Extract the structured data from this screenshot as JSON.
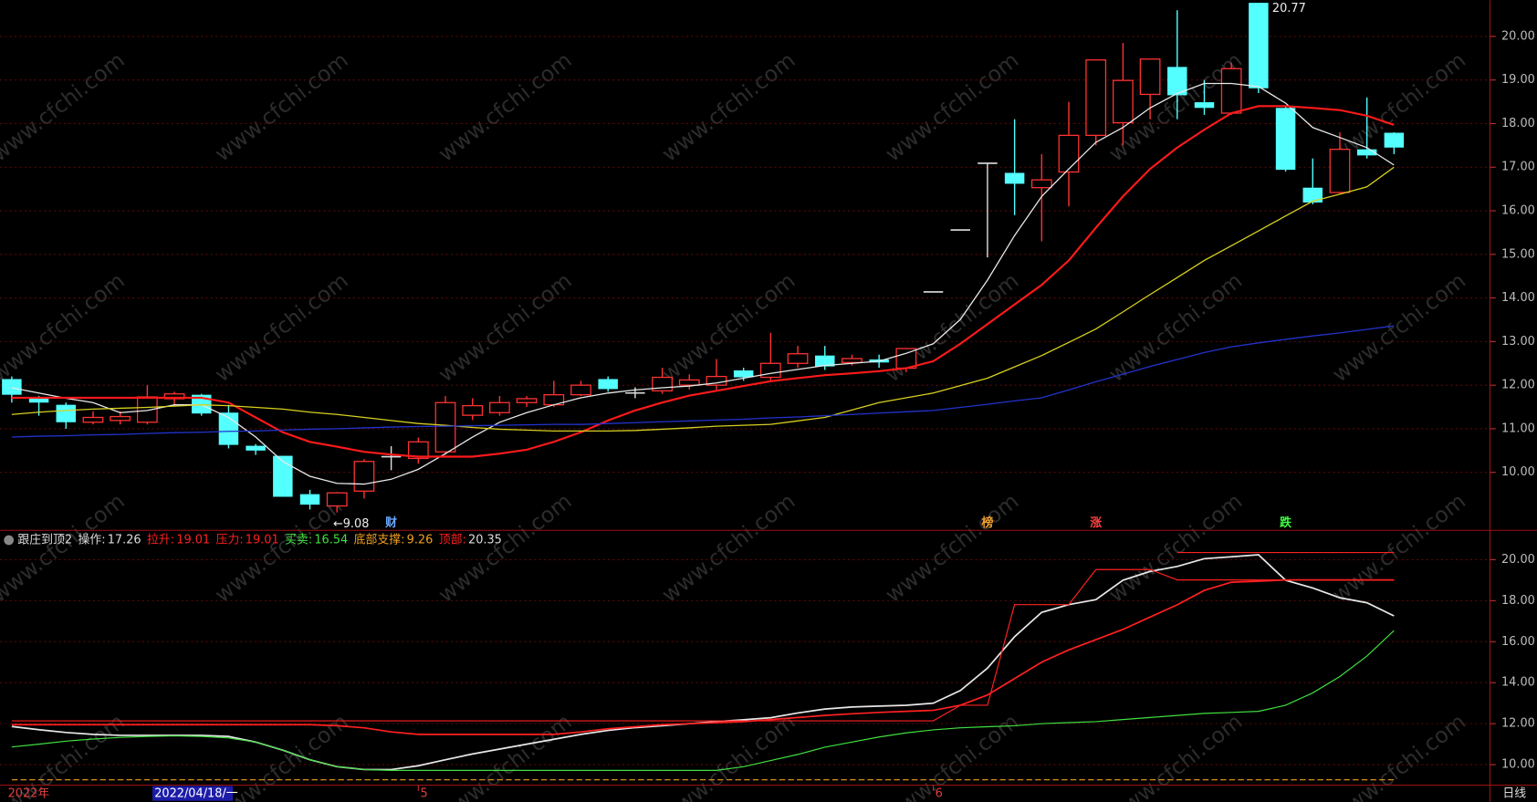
{
  "watermark": "www.cfchi.com",
  "period": "日线",
  "chart_data": [
    {
      "type": "candlestick",
      "ylim": [
        8.67,
        20.83
      ],
      "yticks": [
        {
          "value": 10,
          "label": "10.00"
        },
        {
          "value": 11,
          "label": "11.00"
        },
        {
          "value": 12,
          "label": "12.00"
        },
        {
          "value": 13,
          "label": "13.00"
        },
        {
          "value": 14,
          "label": "14.00"
        },
        {
          "value": 15,
          "label": "15.00"
        },
        {
          "value": 16,
          "label": "16.00"
        },
        {
          "value": 17,
          "label": "17.00"
        },
        {
          "value": 18,
          "label": "18.00"
        },
        {
          "value": 19,
          "label": "19.00"
        },
        {
          "value": 20,
          "label": "20.00"
        }
      ],
      "grid": true,
      "up_color": "#ff3232",
      "down_color": "#54ffff",
      "flat_color": "#e0e0e0",
      "open": [
        12.14,
        11.71,
        11.55,
        11.15,
        11.19,
        11.15,
        11.69,
        11.78,
        11.37,
        10.61,
        10.38,
        9.5,
        9.23,
        9.57,
        10.36,
        10.32,
        10.47,
        11.31,
        11.37,
        11.6,
        11.55,
        11.78,
        12.14,
        11.82,
        11.87,
        12.0,
        12.0,
        12.34,
        12.18,
        12.5,
        12.68,
        12.52,
        12.59,
        12.39,
        14.14,
        15.56,
        17.09,
        16.87,
        16.53,
        16.89,
        17.73,
        18.02,
        18.67,
        19.3,
        18.49,
        18.24,
        20.77,
        18.36,
        16.53,
        16.42,
        17.41,
        17.79
      ],
      "high": [
        12.2,
        11.75,
        11.6,
        11.4,
        11.4,
        12.0,
        11.85,
        11.8,
        11.55,
        10.65,
        10.38,
        9.6,
        9.55,
        10.3,
        10.6,
        10.8,
        11.75,
        11.7,
        11.75,
        11.75,
        12.1,
        12.1,
        12.2,
        11.95,
        12.4,
        12.25,
        12.6,
        12.4,
        13.2,
        12.9,
        12.9,
        12.7,
        12.7,
        12.85,
        14.14,
        15.56,
        17.09,
        18.1,
        17.3,
        18.5,
        19.46,
        19.85,
        19.48,
        20.6,
        19.0,
        19.4,
        20.77,
        18.4,
        17.2,
        17.8,
        18.6,
        17.8
      ],
      "low": [
        11.6,
        11.3,
        11.0,
        11.1,
        11.1,
        11.1,
        11.55,
        11.3,
        10.55,
        10.4,
        9.44,
        9.15,
        9.08,
        9.4,
        10.05,
        10.2,
        10.4,
        11.2,
        11.3,
        11.5,
        11.5,
        11.75,
        11.85,
        11.7,
        11.8,
        11.9,
        11.9,
        12.1,
        12.1,
        12.4,
        12.35,
        12.45,
        12.4,
        12.3,
        14.14,
        15.56,
        14.93,
        15.9,
        15.3,
        16.1,
        17.5,
        17.5,
        18.1,
        18.1,
        18.2,
        18.2,
        18.7,
        16.9,
        16.15,
        16.4,
        17.2,
        17.3
      ],
      "close": [
        11.78,
        11.6,
        11.15,
        11.26,
        11.28,
        11.73,
        11.8,
        11.35,
        10.63,
        10.5,
        9.44,
        9.26,
        9.53,
        10.25,
        10.36,
        10.7,
        11.6,
        11.53,
        11.6,
        11.69,
        11.78,
        12.0,
        11.91,
        11.82,
        12.18,
        12.12,
        12.2,
        12.18,
        12.5,
        12.72,
        12.43,
        12.61,
        12.52,
        12.84,
        14.14,
        15.56,
        17.09,
        16.62,
        16.71,
        17.73,
        19.46,
        18.99,
        19.48,
        18.65,
        18.36,
        19.26,
        18.81,
        16.94,
        16.19,
        17.41,
        17.27,
        17.45
      ],
      "series": [
        {
          "color": "#e8e8e8",
          "values": [
            11.94,
            11.82,
            11.7,
            11.6,
            11.37,
            11.42,
            11.55,
            11.55,
            11.26,
            10.81,
            10.25,
            9.91,
            9.75,
            9.73,
            9.84,
            10.07,
            10.43,
            10.81,
            11.15,
            11.37,
            11.55,
            11.71,
            11.82,
            11.89,
            11.94,
            11.98,
            12.05,
            12.16,
            12.27,
            12.36,
            12.45,
            12.5,
            12.55,
            12.73,
            12.95,
            13.51,
            14.41,
            15.43,
            16.33,
            16.96,
            17.57,
            17.91,
            18.36,
            18.69,
            18.92,
            18.92,
            18.85,
            18.47,
            17.91,
            17.68,
            17.45,
            17.05
          ]
        },
        {
          "color": "#ff1a1a",
          "values": [
            11.71,
            11.71,
            11.71,
            11.71,
            11.71,
            11.71,
            11.71,
            11.71,
            11.6,
            11.26,
            10.92,
            10.7,
            10.59,
            10.47,
            10.41,
            10.36,
            10.36,
            10.36,
            10.43,
            10.52,
            10.7,
            10.92,
            11.19,
            11.42,
            11.6,
            11.76,
            11.87,
            11.98,
            12.09,
            12.16,
            12.23,
            12.27,
            12.32,
            12.39,
            12.55,
            12.95,
            13.4,
            13.85,
            14.3,
            14.86,
            15.61,
            16.33,
            16.96,
            17.45,
            17.86,
            18.24,
            18.4,
            18.4,
            18.36,
            18.31,
            18.18,
            17.97
          ]
        },
        {
          "color": "#d8d020",
          "values": [
            11.33,
            11.38,
            11.42,
            11.45,
            11.47,
            11.49,
            11.52,
            11.55,
            11.53,
            11.49,
            11.45,
            11.38,
            11.33,
            11.26,
            11.19,
            11.12,
            11.08,
            11.03,
            10.99,
            10.97,
            10.95,
            10.95,
            10.95,
            10.96,
            10.99,
            11.02,
            11.06,
            11.08,
            11.1,
            11.18,
            11.26,
            11.43,
            11.6,
            11.71,
            11.82,
            11.99,
            12.16,
            12.42,
            12.68,
            12.98,
            13.29,
            13.68,
            14.08,
            14.47,
            14.86,
            15.2,
            15.54,
            15.88,
            16.22,
            16.38,
            16.55,
            17.0
          ]
        },
        {
          "color": "#2233cc",
          "values": [
            10.81,
            10.83,
            10.84,
            10.86,
            10.87,
            10.89,
            10.91,
            10.92,
            10.94,
            10.95,
            10.97,
            10.99,
            11.0,
            11.02,
            11.04,
            11.05,
            11.06,
            11.07,
            11.08,
            11.09,
            11.1,
            11.1,
            11.12,
            11.14,
            11.16,
            11.18,
            11.2,
            11.22,
            11.25,
            11.27,
            11.3,
            11.33,
            11.36,
            11.39,
            11.42,
            11.49,
            11.56,
            11.64,
            11.71,
            11.89,
            12.08,
            12.25,
            12.43,
            12.59,
            12.75,
            12.88,
            12.97,
            13.05,
            13.13,
            13.2,
            13.28,
            13.36
          ]
        }
      ],
      "high_label": "20.77",
      "low_label": "←9.08",
      "events": [
        {
          "label": "财",
          "index": 14,
          "color": "#6aa8ff"
        },
        {
          "label": "榜",
          "index": 36,
          "color": "#f0a030"
        },
        {
          "label": "涨",
          "index": 40,
          "color": "#ff4040"
        },
        {
          "label": "跌",
          "index": 47,
          "color": "#40ff40"
        }
      ],
      "x_labels": [
        {
          "label": "2022年",
          "index": 0
        },
        {
          "label": "2022/04/18/一",
          "index": 7
        },
        {
          "label": "5",
          "index": 15
        },
        {
          "label": "6",
          "index": 34
        }
      ]
    },
    {
      "type": "line",
      "title": "跟庄到顶2",
      "ylim": [
        9.05,
        21.24
      ],
      "yticks": [
        {
          "value": 10,
          "label": "10.00"
        },
        {
          "value": 12,
          "label": "12.00"
        },
        {
          "value": 14,
          "label": "14.00"
        },
        {
          "value": 16,
          "label": "16.00"
        },
        {
          "value": 18,
          "label": "18.00"
        },
        {
          "value": 20,
          "label": "20.00"
        }
      ],
      "grid": true,
      "series": [
        {
          "name": "操作:",
          "color": "#e8e8e8",
          "values": [
            11.86,
            11.71,
            11.57,
            11.48,
            11.43,
            11.43,
            11.43,
            11.43,
            11.38,
            11.1,
            10.71,
            10.24,
            9.9,
            9.76,
            9.76,
            9.95,
            10.24,
            10.52,
            10.76,
            11.0,
            11.24,
            11.48,
            11.67,
            11.81,
            11.9,
            12.0,
            12.1,
            12.19,
            12.29,
            12.52,
            12.71,
            12.81,
            12.86,
            12.9,
            13.0,
            13.62,
            14.71,
            16.24,
            17.43,
            17.81,
            18.05,
            19.0,
            19.43,
            19.67,
            20.05,
            20.14,
            20.24,
            19.0,
            18.62,
            18.14,
            17.9,
            17.26
          ]
        },
        {
          "name": "拉升:",
          "color": "#ff2020",
          "values": [
            11.95,
            11.95,
            11.95,
            11.95,
            11.95,
            11.95,
            11.95,
            11.95,
            11.95,
            11.95,
            11.95,
            11.95,
            11.9,
            11.8,
            11.6,
            11.48,
            11.48,
            11.48,
            11.48,
            11.48,
            11.48,
            11.6,
            11.75,
            11.85,
            11.95,
            12.0,
            12.05,
            12.1,
            12.2,
            12.3,
            12.4,
            12.48,
            12.55,
            12.6,
            12.65,
            12.9,
            13.4,
            14.2,
            15.0,
            15.6,
            16.1,
            16.6,
            17.2,
            17.8,
            18.5,
            18.9,
            18.95,
            19.01,
            19.01,
            19.01,
            19.01,
            19.01
          ]
        },
        {
          "name": "压力:",
          "color": "#ff2020",
          "values": [
            12.14,
            12.14,
            12.14,
            12.14,
            12.14,
            12.14,
            12.14,
            12.14,
            12.14,
            12.14,
            12.14,
            12.14,
            12.14,
            12.14,
            12.14,
            12.14,
            12.14,
            12.14,
            12.14,
            12.14,
            12.14,
            12.14,
            12.14,
            12.14,
            12.14,
            12.14,
            12.14,
            12.14,
            12.14,
            12.14,
            12.14,
            12.14,
            12.14,
            12.14,
            12.14,
            12.9,
            12.9,
            17.81,
            17.81,
            17.81,
            19.52,
            19.52,
            19.52,
            19.01,
            19.01,
            19.01,
            19.01,
            19.01,
            19.01,
            19.01,
            19.01,
            19.01
          ]
        },
        {
          "name": "买卖:",
          "color": "#40e040",
          "values": [
            10.86,
            11.0,
            11.15,
            11.25,
            11.33,
            11.38,
            11.4,
            11.38,
            11.3,
            11.1,
            10.71,
            10.24,
            9.9,
            9.76,
            9.72,
            9.72,
            9.72,
            9.72,
            9.72,
            9.72,
            9.72,
            9.72,
            9.72,
            9.72,
            9.72,
            9.72,
            9.72,
            9.9,
            10.2,
            10.5,
            10.85,
            11.1,
            11.35,
            11.55,
            11.7,
            11.8,
            11.85,
            11.9,
            12.0,
            12.05,
            12.1,
            12.2,
            12.3,
            12.4,
            12.5,
            12.55,
            12.6,
            12.9,
            13.5,
            14.3,
            15.3,
            16.54
          ]
        },
        {
          "name": "底部支撑:",
          "color": "#f0a020",
          "values": [
            9.26,
            9.26,
            9.26,
            9.26,
            9.26,
            9.26,
            9.26,
            9.26,
            9.26,
            9.26,
            9.26,
            9.26,
            9.26,
            9.26,
            9.26,
            9.26,
            9.26,
            9.26,
            9.26,
            9.26,
            9.26,
            9.26,
            9.26,
            9.26,
            9.26,
            9.26,
            9.26,
            9.26,
            9.26,
            9.26,
            9.26,
            9.26,
            9.26,
            9.26,
            9.26,
            9.26,
            9.26,
            9.26,
            9.26,
            9.26,
            9.26,
            9.26,
            9.26,
            9.26,
            9.26,
            9.26,
            9.26,
            9.26,
            9.26,
            9.26,
            9.26,
            9.26
          ]
        },
        {
          "name": "顶部:",
          "color": "#ff2020",
          "values": [
            null,
            null,
            null,
            null,
            null,
            null,
            null,
            null,
            null,
            null,
            null,
            null,
            null,
            null,
            null,
            null,
            null,
            null,
            null,
            null,
            null,
            null,
            null,
            null,
            null,
            null,
            null,
            null,
            null,
            null,
            null,
            null,
            null,
            null,
            null,
            null,
            null,
            null,
            null,
            null,
            null,
            null,
            null,
            20.35,
            20.35,
            20.35,
            20.35,
            20.35,
            20.35,
            20.35,
            20.35,
            20.35
          ]
        }
      ]
    }
  ]
}
